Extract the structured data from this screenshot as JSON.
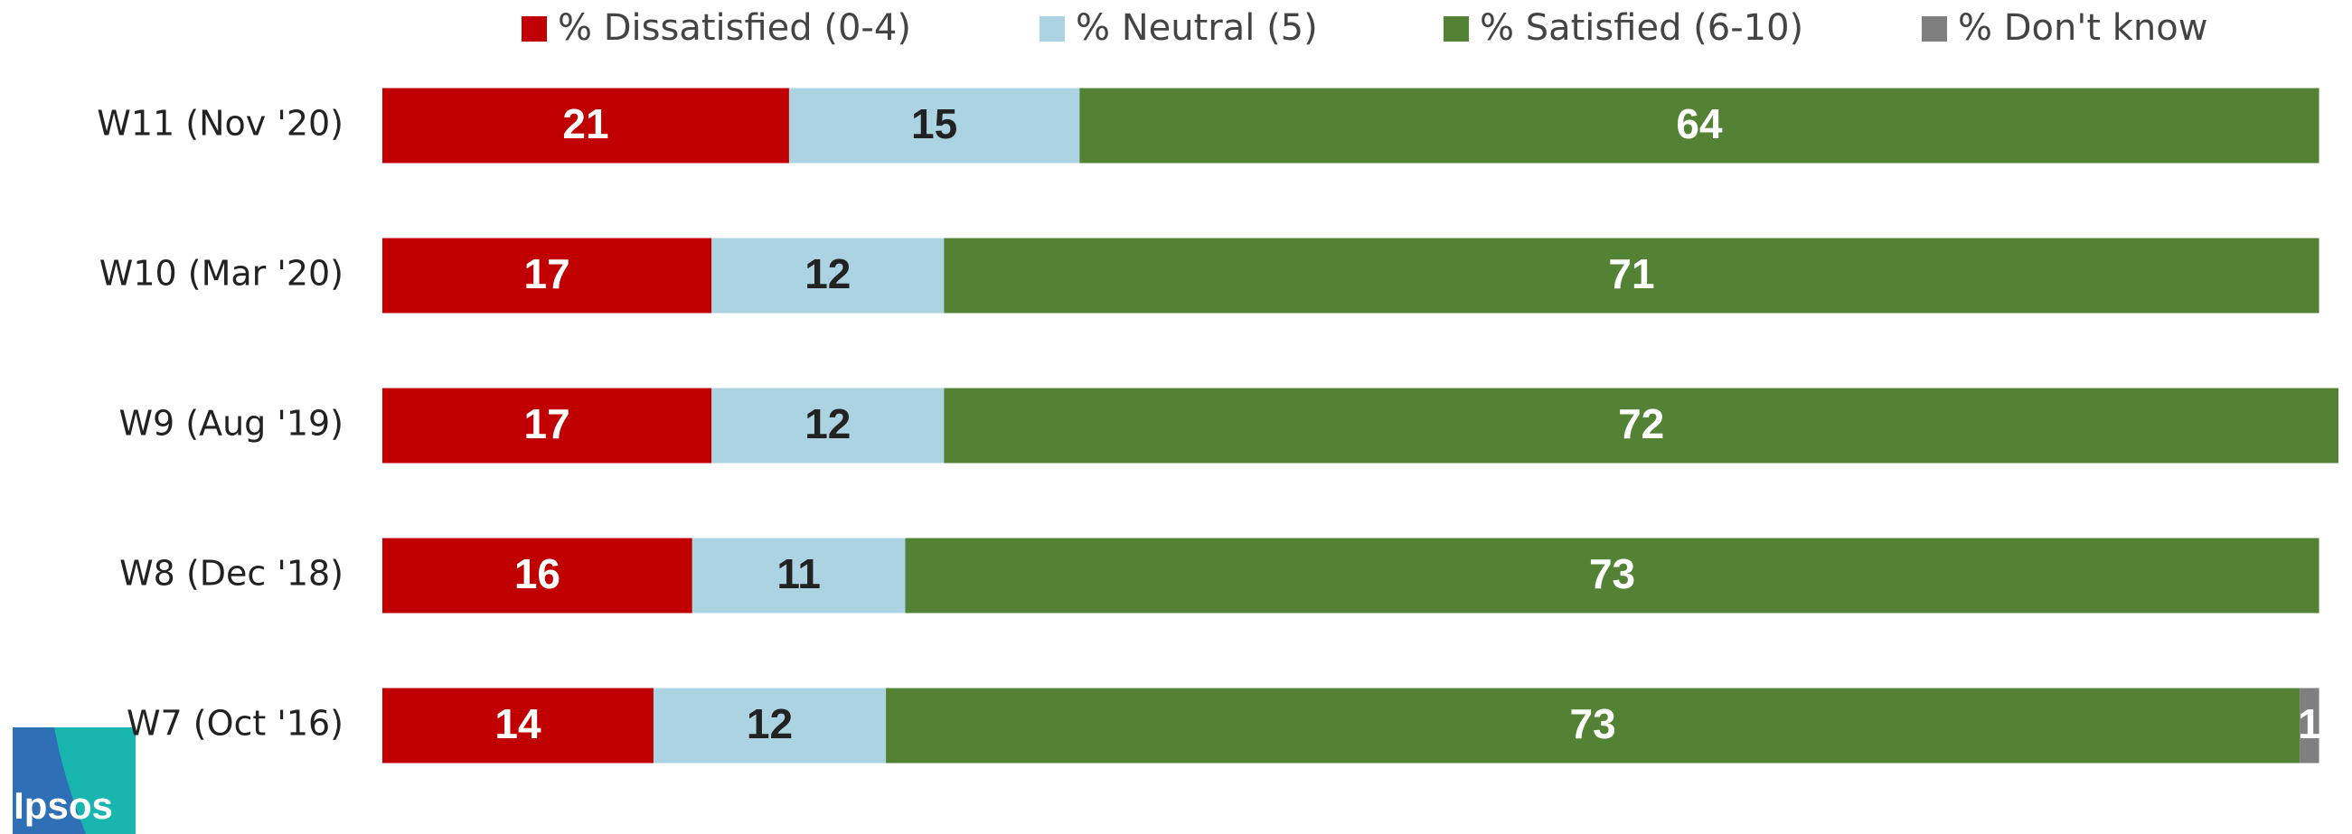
{
  "chart_data": {
    "type": "stacked_barh",
    "categories": [
      "W11 (Nov '20)",
      "W10 (Mar '20)",
      "W9 (Aug '19)",
      "W8 (Dec '18)",
      "W7 (Oct '16)"
    ],
    "series": [
      {
        "name": "% Dissatisfied (0-4)",
        "color": "#c00000",
        "label_color": "#ffffff",
        "values": [
          21,
          17,
          17,
          16,
          14
        ]
      },
      {
        "name": "% Neutral (5)",
        "color": "#abd3e1",
        "label_color": "#222222",
        "values": [
          15,
          12,
          12,
          11,
          12
        ]
      },
      {
        "name": "% Satisfied (6-10)",
        "color": "#548235",
        "label_color": "#ffffff",
        "values": [
          64,
          71,
          72,
          73,
          73
        ]
      },
      {
        "name": "% Don't know",
        "color": "#7f7f7f",
        "label_color": "#ffffff",
        "values": [
          null,
          null,
          null,
          null,
          1
        ]
      }
    ],
    "xlim": [
      0,
      101
    ],
    "logo": "Ipsos"
  }
}
